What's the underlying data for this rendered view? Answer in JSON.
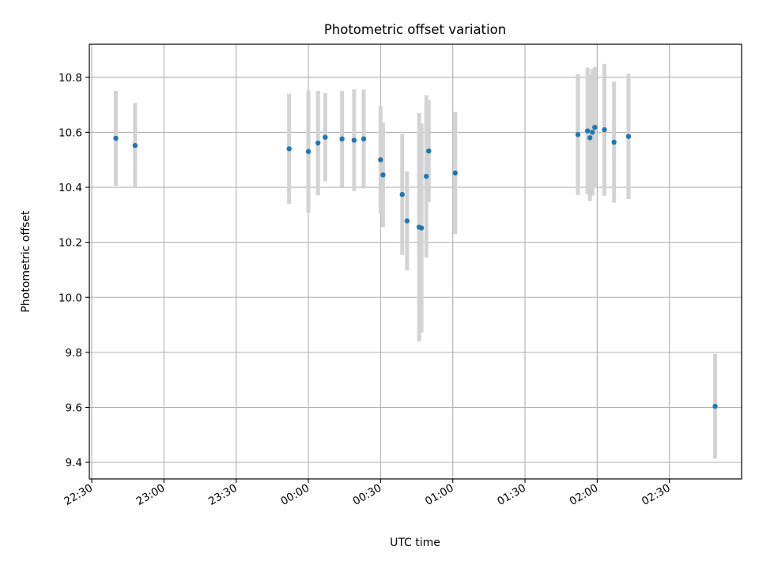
{
  "chart_data": {
    "type": "scatter",
    "title": "Photometric offset variation",
    "xlabel": "UTC time",
    "ylabel": "Photometric offset",
    "x_axis_type": "time",
    "xlim": [
      "22:29",
      "03:00"
    ],
    "ylim": [
      9.34,
      10.92
    ],
    "x_ticks": [
      "22:30",
      "23:00",
      "23:30",
      "00:00",
      "00:30",
      "01:00",
      "01:30",
      "02:00",
      "02:30"
    ],
    "y_ticks": [
      "9.4",
      "9.6",
      "9.8",
      "10.0",
      "10.2",
      "10.4",
      "10.6",
      "10.8"
    ],
    "grid": true,
    "point_color": "#1f77b4",
    "errorbar_color": "#d3d3d3",
    "series": [
      {
        "points": [
          {
            "t": "22:40",
            "y": 10.578,
            "err": 0.173
          },
          {
            "t": "22:48",
            "y": 10.552,
            "err": 0.155
          },
          {
            "t": "23:52",
            "y": 10.54,
            "err": 0.2
          },
          {
            "t": "00:00",
            "y": 10.53,
            "err": 0.222
          },
          {
            "t": "00:04",
            "y": 10.561,
            "err": 0.19
          },
          {
            "t": "00:07",
            "y": 10.582,
            "err": 0.16
          },
          {
            "t": "00:14",
            "y": 10.576,
            "err": 0.175
          },
          {
            "t": "00:19",
            "y": 10.571,
            "err": 0.185
          },
          {
            "t": "00:23",
            "y": 10.576,
            "err": 0.18
          },
          {
            "t": "00:30",
            "y": 10.5,
            "err": 0.195
          },
          {
            "t": "00:31",
            "y": 10.445,
            "err": 0.19
          },
          {
            "t": "00:39",
            "y": 10.374,
            "err": 0.22
          },
          {
            "t": "00:41",
            "y": 10.278,
            "err": 0.18
          },
          {
            "t": "00:46",
            "y": 10.255,
            "err": 0.415
          },
          {
            "t": "00:47",
            "y": 10.252,
            "err": 0.38
          },
          {
            "t": "00:49",
            "y": 10.44,
            "err": 0.295
          },
          {
            "t": "00:50",
            "y": 10.532,
            "err": 0.185
          },
          {
            "t": "01:01",
            "y": 10.452,
            "err": 0.222
          },
          {
            "t": "01:52",
            "y": 10.592,
            "err": 0.22
          },
          {
            "t": "01:56",
            "y": 10.605,
            "err": 0.23
          },
          {
            "t": "01:57",
            "y": 10.58,
            "err": 0.23
          },
          {
            "t": "01:58",
            "y": 10.6,
            "err": 0.23
          },
          {
            "t": "01:59",
            "y": 10.618,
            "err": 0.22
          },
          {
            "t": "02:03",
            "y": 10.609,
            "err": 0.24
          },
          {
            "t": "02:07",
            "y": 10.564,
            "err": 0.22
          },
          {
            "t": "02:13",
            "y": 10.585,
            "err": 0.228
          },
          {
            "t": "02:49",
            "y": 9.604,
            "err": 0.19
          }
        ]
      }
    ]
  }
}
